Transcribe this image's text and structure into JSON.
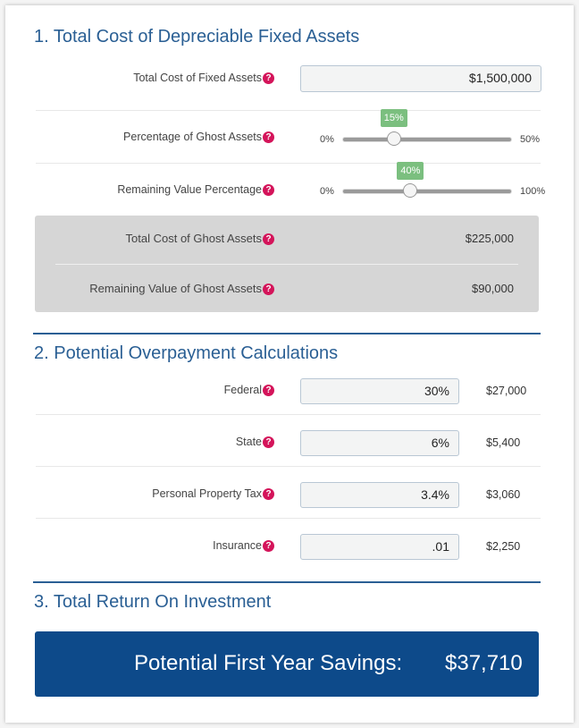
{
  "section1": {
    "title": "1. Total Cost of Depreciable Fixed Assets",
    "total_cost_label": "Total Cost of Fixed Assets",
    "total_cost_value": "$1,500,000",
    "ghost_pct": {
      "label": "Percentage of Ghost Assets",
      "min": "0%",
      "max": "50%",
      "value_label": "15%",
      "value": 15,
      "range": [
        0,
        50
      ]
    },
    "remaining_pct": {
      "label": "Remaining Value Percentage",
      "min": "0%",
      "max": "100%",
      "value_label": "40%",
      "value": 40,
      "range": [
        0,
        100
      ]
    },
    "summary": [
      {
        "label": "Total Cost of Ghost Assets",
        "value": "$225,000"
      },
      {
        "label": "Remaining Value of Ghost Assets",
        "value": "$90,000"
      }
    ]
  },
  "section2": {
    "title": "2. Potential Overpayment Calculations",
    "rows": [
      {
        "label": "Federal",
        "input": "30%",
        "amount": "$27,000"
      },
      {
        "label": "State",
        "input": "6%",
        "amount": "$5,400"
      },
      {
        "label": "Personal Property Tax",
        "input": "3.4%",
        "amount": "$3,060"
      },
      {
        "label": "Insurance",
        "input": ".01",
        "amount": "$2,250"
      }
    ]
  },
  "section3": {
    "title": "3. Total Return On Investment",
    "savings_label": "Potential First Year Savings:",
    "savings_value": "$37,710"
  },
  "help_glyph": "?",
  "colors": {
    "heading": "#2a5f94",
    "help": "#d4145a",
    "slider_bubble": "#7bbf7f",
    "savings_bg": "#0d4a8a"
  }
}
